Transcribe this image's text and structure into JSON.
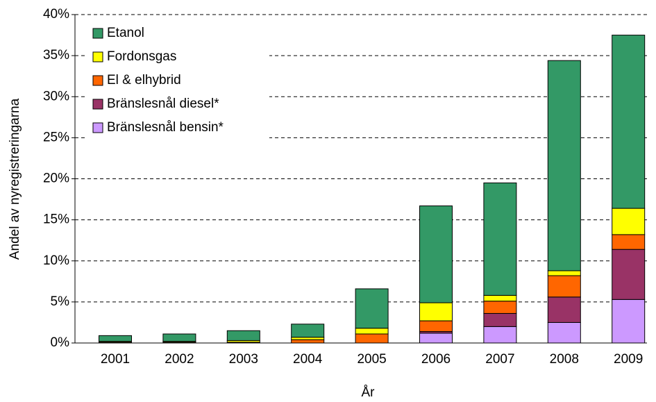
{
  "chart_data": {
    "type": "stacked_bar",
    "x_label": "År",
    "y_label": "Andel av nyregistreringarna",
    "categories": [
      "2001",
      "2002",
      "2003",
      "2004",
      "2005",
      "2006",
      "2007",
      "2008",
      "2009"
    ],
    "series": [
      {
        "name": "Bränslesnål bensin*",
        "color": "#cc99ff",
        "values": [
          0,
          0,
          0,
          0,
          0,
          1.2,
          2.0,
          2.5,
          5.3
        ]
      },
      {
        "name": "Bränslesnål diesel*",
        "color": "#993366",
        "values": [
          0.1,
          0.1,
          0,
          0,
          0,
          0.2,
          1.6,
          3.1,
          6.1
        ]
      },
      {
        "name": "El & elhybrid",
        "color": "#ff6600",
        "values": [
          0,
          0,
          0.1,
          0.4,
          1.1,
          1.3,
          1.5,
          2.6,
          1.8
        ]
      },
      {
        "name": "Fordonsgas",
        "color": "#ffff00",
        "values": [
          0.1,
          0.1,
          0.2,
          0.3,
          0.7,
          2.2,
          0.7,
          0.6,
          3.2
        ]
      },
      {
        "name": "Etanol",
        "color": "#339966",
        "values": [
          0.7,
          0.9,
          1.2,
          1.6,
          4.8,
          11.8,
          13.7,
          25.6,
          21.1
        ]
      }
    ],
    "ylim": [
      0,
      40
    ],
    "yticks": [
      {
        "value": 0,
        "label": "0%"
      },
      {
        "value": 5,
        "label": "5%"
      },
      {
        "value": 10,
        "label": "10%"
      },
      {
        "value": 15,
        "label": "15%"
      },
      {
        "value": 20,
        "label": "20%"
      },
      {
        "value": 25,
        "label": "25%"
      },
      {
        "value": 30,
        "label": "30%"
      },
      {
        "value": 35,
        "label": "35%"
      },
      {
        "value": 40,
        "label": "40%"
      }
    ],
    "grid": true,
    "legend": "upper left"
  }
}
